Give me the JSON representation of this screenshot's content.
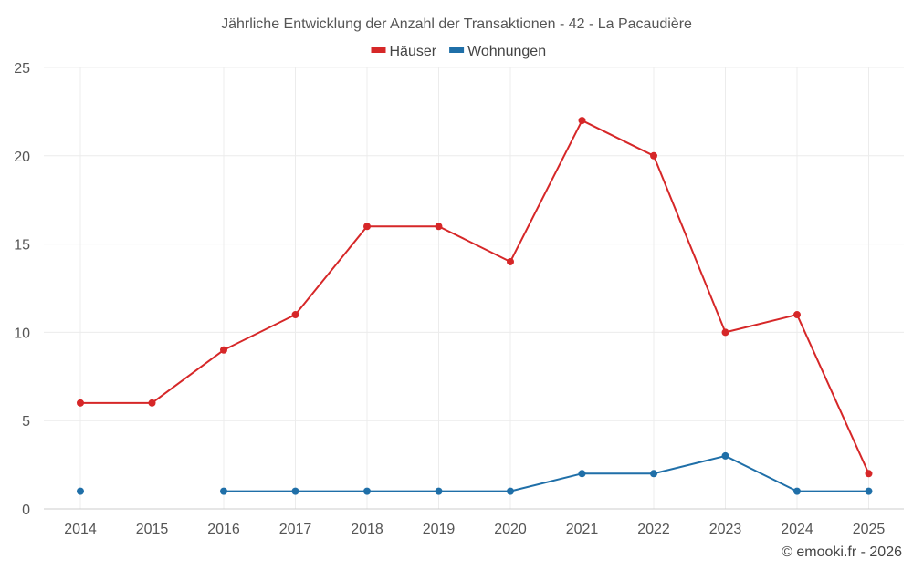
{
  "chart_data": {
    "type": "line",
    "title": "Jährliche Entwicklung der Anzahl der Transaktionen - 42 - La Pacaudière",
    "categories": [
      "2014",
      "2015",
      "2016",
      "2017",
      "2018",
      "2019",
      "2020",
      "2021",
      "2022",
      "2023",
      "2024",
      "2025"
    ],
    "ylim": [
      0,
      25
    ],
    "yticks": [
      0,
      5,
      10,
      15,
      20,
      25
    ],
    "grid": true,
    "legend_position": "top-center",
    "series": [
      {
        "name": "Häuser",
        "color": "#d62728",
        "values": [
          6,
          6,
          9,
          11,
          16,
          16,
          14,
          22,
          20,
          10,
          11,
          2
        ]
      },
      {
        "name": "Wohnungen",
        "color": "#1f6fa8",
        "values": [
          1,
          null,
          1,
          1,
          1,
          1,
          1,
          2,
          2,
          3,
          1,
          1
        ]
      }
    ]
  },
  "credit": "© emooki.fr - 2026"
}
